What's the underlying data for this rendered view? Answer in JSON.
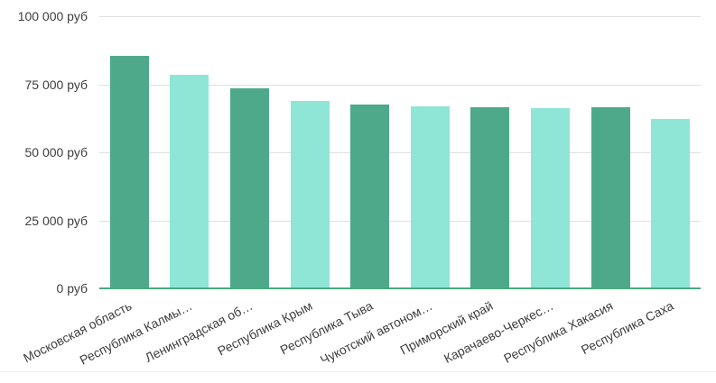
{
  "chart_data": {
    "type": "bar",
    "title": "",
    "xlabel": "",
    "ylabel": "",
    "legend": "none",
    "grid": true,
    "ylim": [
      0,
      100000
    ],
    "categories": [
      "Московская область",
      "Республика Калмы…",
      "Ленинградская об…",
      "Республика Крым",
      "Республика Тыва",
      "Чукотский автоном…",
      "Приморский край",
      "Карачаево-Черкес…",
      "Республика Хакасия",
      "Республика Саха"
    ],
    "values": [
      85500,
      78600,
      73500,
      68800,
      67600,
      66900,
      66500,
      66200,
      66400,
      62300
    ],
    "bar_color_pattern": [
      "dark",
      "light",
      "dark",
      "light",
      "dark",
      "light",
      "dark",
      "light",
      "dark",
      "light"
    ],
    "y_ticks": [
      {
        "value": 0,
        "label": "0 руб"
      },
      {
        "value": 25000,
        "label": "25 000 руб"
      },
      {
        "value": 50000,
        "label": "50 000 руб"
      },
      {
        "value": 75000,
        "label": "75 000 руб"
      },
      {
        "value": 100000,
        "label": "100 000 руб"
      }
    ],
    "colors": {
      "bar_dark": "#4da98a",
      "bar_light": "#8fe5d6",
      "axis_line": "#4aa983",
      "gridline": "#e0e0e0",
      "label_text": "#3d3d3d",
      "bottom_border": "#ededed",
      "background": "#ffffff"
    }
  }
}
